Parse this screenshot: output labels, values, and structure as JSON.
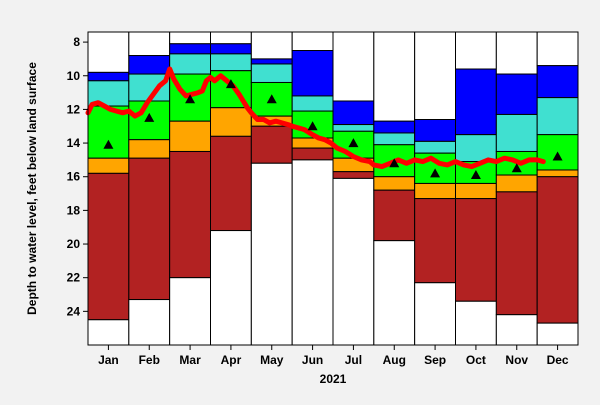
{
  "chart_data": {
    "type": "bar",
    "title": "",
    "xlabel": "2021",
    "ylabel": "Depth to water level, feet below land surface",
    "y_inverted": true,
    "ylim": [
      7.4,
      26
    ],
    "y_ticks": [
      8,
      10,
      12,
      14,
      16,
      18,
      20,
      22,
      24
    ],
    "categories": [
      "Jan",
      "Feb",
      "Mar",
      "Apr",
      "May",
      "Jun",
      "Jul",
      "Aug",
      "Sep",
      "Oct",
      "Nov",
      "Dec"
    ],
    "band_colors": {
      "max_to_p90": "#ffffff",
      "p90_to_p76": "#0000ff",
      "p76_to_p51": "#40e0d0",
      "p51_to_p25": "#00ff00",
      "p25_to_p10": "#ffa500",
      "p10_to_min": "#b22222",
      "below_min": "#ffffff",
      "current_line": "#ff0000",
      "median_marker": "#000000"
    },
    "band_boundaries": [
      [
        7.4,
        9.8,
        10.3,
        11.8,
        14.9,
        15.8,
        24.5
      ],
      [
        7.4,
        8.8,
        9.9,
        11.5,
        13.8,
        14.9,
        23.3
      ],
      [
        7.4,
        8.1,
        8.7,
        9.9,
        12.7,
        14.5,
        22.0
      ],
      [
        7.4,
        8.1,
        8.7,
        9.7,
        11.9,
        13.6,
        19.2
      ],
      [
        7.4,
        9.0,
        9.3,
        10.4,
        12.4,
        13.0,
        15.2
      ],
      [
        7.4,
        8.5,
        11.2,
        12.1,
        13.7,
        14.3,
        15.0
      ],
      [
        7.4,
        11.5,
        12.9,
        13.3,
        14.9,
        15.7,
        16.1
      ],
      [
        7.4,
        12.7,
        13.4,
        14.1,
        16.0,
        16.8,
        19.8
      ],
      [
        7.4,
        12.6,
        13.9,
        14.6,
        16.4,
        17.3,
        22.3
      ],
      [
        7.4,
        9.6,
        13.5,
        15.1,
        16.4,
        17.3,
        23.4
      ],
      [
        7.4,
        9.9,
        12.3,
        14.5,
        15.9,
        16.9,
        24.2
      ],
      [
        7.4,
        9.4,
        11.3,
        13.5,
        15.6,
        16.0,
        24.7
      ]
    ],
    "median_markers": [
      14.1,
      12.5,
      11.4,
      10.5,
      11.4,
      13.0,
      14.0,
      15.2,
      15.8,
      15.9,
      15.5,
      14.8
    ],
    "series": [
      {
        "values": [
          [
            0.0,
            12.2
          ],
          [
            0.1,
            11.7
          ],
          [
            0.25,
            11.6
          ],
          [
            0.4,
            11.8
          ],
          [
            0.55,
            12.0
          ],
          [
            0.7,
            12.1
          ],
          [
            0.85,
            12.2
          ],
          [
            1.0,
            12.1
          ],
          [
            1.15,
            12.4
          ],
          [
            1.3,
            12.2
          ],
          [
            1.45,
            11.6
          ],
          [
            1.6,
            11.1
          ],
          [
            1.75,
            10.6
          ],
          [
            1.9,
            10.3
          ],
          [
            2.0,
            9.6
          ],
          [
            2.1,
            10.2
          ],
          [
            2.25,
            10.8
          ],
          [
            2.4,
            11.2
          ],
          [
            2.55,
            11.1
          ],
          [
            2.7,
            11.0
          ],
          [
            2.8,
            10.9
          ],
          [
            2.9,
            10.3
          ],
          [
            3.0,
            10.1
          ],
          [
            3.1,
            10.3
          ],
          [
            3.25,
            10.0
          ],
          [
            3.4,
            10.3
          ],
          [
            3.55,
            10.6
          ],
          [
            3.7,
            11.1
          ],
          [
            3.8,
            11.5
          ],
          [
            3.9,
            11.9
          ],
          [
            4.0,
            12.2
          ],
          [
            4.15,
            12.6
          ],
          [
            4.3,
            12.6
          ],
          [
            4.45,
            12.8
          ],
          [
            4.6,
            12.7
          ],
          [
            4.75,
            12.8
          ],
          [
            4.9,
            12.9
          ],
          [
            5.0,
            13.0
          ],
          [
            5.15,
            13.1
          ],
          [
            5.3,
            13.2
          ],
          [
            5.5,
            13.5
          ],
          [
            5.65,
            13.7
          ],
          [
            5.8,
            13.8
          ],
          [
            5.95,
            14.0
          ],
          [
            6.1,
            14.3
          ],
          [
            6.3,
            14.5
          ],
          [
            6.5,
            14.8
          ],
          [
            6.7,
            15.0
          ],
          [
            6.9,
            15.1
          ],
          [
            7.0,
            15.3
          ],
          [
            7.2,
            15.4
          ],
          [
            7.4,
            15.2
          ],
          [
            7.6,
            15.0
          ],
          [
            7.8,
            15.2
          ],
          [
            8.0,
            15.0
          ],
          [
            8.2,
            15.1
          ],
          [
            8.4,
            14.9
          ],
          [
            8.6,
            15.2
          ],
          [
            8.8,
            15.3
          ],
          [
            9.0,
            15.1
          ],
          [
            9.2,
            15.3
          ],
          [
            9.4,
            15.4
          ],
          [
            9.6,
            15.2
          ],
          [
            9.8,
            15.0
          ],
          [
            10.0,
            15.1
          ],
          [
            10.2,
            14.9
          ],
          [
            10.4,
            15.0
          ],
          [
            10.6,
            15.2
          ],
          [
            10.8,
            15.0
          ],
          [
            11.0,
            15.0
          ],
          [
            11.15,
            15.1
          ]
        ]
      }
    ]
  }
}
